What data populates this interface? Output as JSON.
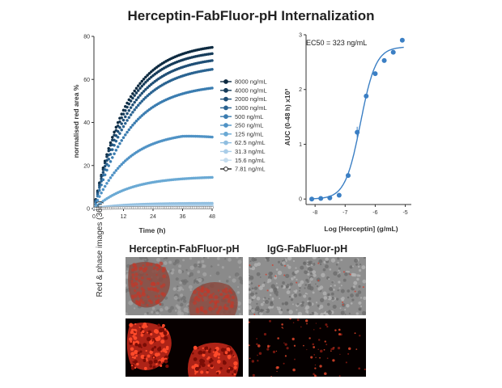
{
  "title": "Herceptin-FabFluor-pH Internalization",
  "chart_data": [
    {
      "type": "line",
      "xlabel": "Time (h)",
      "ylabel": "normalised red area %",
      "xlim": [
        0,
        48
      ],
      "ylim": [
        0,
        80
      ],
      "xticks": [
        "0",
        "12",
        "24",
        "36",
        "48"
      ],
      "yticks": [
        "0",
        "20",
        "40",
        "60",
        "80"
      ],
      "legend_position": "right",
      "series": [
        {
          "name": "8000 ng/mL",
          "color": "#0d2a40",
          "plateau": 77,
          "rate": 0.075,
          "x": [
            0,
            6,
            12,
            18,
            24,
            30,
            36,
            42,
            48
          ],
          "y": [
            0,
            28,
            47,
            59,
            67,
            72,
            75,
            76,
            77
          ]
        },
        {
          "name": "4000 ng/mL",
          "color": "#173c5a",
          "plateau": 74,
          "rate": 0.075,
          "x": [
            0,
            6,
            12,
            18,
            24,
            30,
            36,
            42,
            48
          ],
          "y": [
            0,
            27,
            45,
            57,
            64,
            69,
            72,
            73,
            74
          ]
        },
        {
          "name": "2000 ng/mL",
          "color": "#1f4e75",
          "plateau": 71,
          "rate": 0.072,
          "x": [
            0,
            6,
            12,
            18,
            24,
            30,
            36,
            42,
            48
          ],
          "y": [
            0,
            25,
            42,
            53,
            61,
            66,
            68,
            70,
            71
          ]
        },
        {
          "name": "1000 ng/mL",
          "color": "#2a6391",
          "plateau": 67,
          "rate": 0.07,
          "x": [
            0,
            6,
            12,
            18,
            24,
            30,
            36,
            42,
            48
          ],
          "y": [
            0,
            23,
            39,
            50,
            57,
            61,
            64,
            66,
            67
          ]
        },
        {
          "name": "500 ng/mL",
          "color": "#3a7cb0",
          "plateau": 58,
          "rate": 0.07,
          "x": [
            0,
            6,
            12,
            18,
            24,
            30,
            36,
            42,
            48
          ],
          "y": [
            0,
            20,
            33,
            43,
            49,
            53,
            56,
            57,
            58
          ]
        },
        {
          "name": "250 ng/mL",
          "color": "#4f92c5",
          "plateau": 36,
          "rate": 0.075,
          "x": [
            0,
            6,
            12,
            18,
            24,
            30,
            36,
            42,
            48
          ],
          "y": [
            0,
            13,
            22,
            27,
            31,
            34,
            36,
            35,
            34
          ]
        },
        {
          "name": "125 ng/mL",
          "color": "#6aa9d4",
          "plateau": 15,
          "rate": 0.07,
          "x": [
            0,
            6,
            12,
            18,
            24,
            30,
            36,
            42,
            48
          ],
          "y": [
            0,
            5,
            9,
            11,
            13,
            14,
            15,
            14,
            14
          ]
        },
        {
          "name": "62.5 ng/mL",
          "color": "#8fbee0",
          "plateau": 2.5,
          "rate": 0.08,
          "x": [
            0,
            6,
            12,
            18,
            24,
            30,
            36,
            42,
            48
          ],
          "y": [
            0,
            1,
            1.5,
            2,
            2.3,
            2.5,
            2.5,
            2.5,
            2.5
          ]
        },
        {
          "name": "31.3 ng/mL",
          "color": "#a9cde8",
          "plateau": 1.5,
          "rate": 0.08,
          "x": [
            0,
            6,
            12,
            18,
            24,
            30,
            36,
            42,
            48
          ],
          "y": [
            0,
            0.6,
            1,
            1.2,
            1.4,
            1.5,
            1.5,
            1.5,
            1.5
          ]
        },
        {
          "name": "15.6 ng/mL",
          "color": "#c4dcee",
          "plateau": 0.8,
          "rate": 0.08,
          "x": [
            0,
            6,
            12,
            18,
            24,
            30,
            36,
            42,
            48
          ],
          "y": [
            0,
            0.3,
            0.5,
            0.6,
            0.7,
            0.8,
            0.8,
            0.8,
            0.8
          ]
        },
        {
          "name": "7.81 ng/mL",
          "color": "#ffffff",
          "plateau": 0.5,
          "rate": 0.08,
          "x": [
            0,
            6,
            12,
            18,
            24,
            30,
            36,
            42,
            48
          ],
          "y": [
            0,
            0.2,
            0.3,
            0.4,
            0.45,
            0.5,
            0.5,
            0.5,
            0.5
          ]
        }
      ]
    },
    {
      "type": "scatter",
      "xlabel": "Log [Herceptin] (g/mL)",
      "ylabel": "AUC (0-48 h) x10³",
      "annotation": "EC50 = 323 ng/mL",
      "xlim": [
        -8.3,
        -4.8
      ],
      "ylim": [
        -0.1,
        3.0
      ],
      "xticks": [
        "-8",
        "-7",
        "-6",
        "-5"
      ],
      "yticks": [
        "0",
        "1",
        "2",
        "3"
      ],
      "fit": "sigmoidal dose-response",
      "fit_params": {
        "bottom": 0.0,
        "top": 2.78,
        "logEC50": -6.49,
        "hill": 1.7
      },
      "points": [
        {
          "x": -8.11,
          "y": 0.0
        },
        {
          "x": -7.81,
          "y": 0.01
        },
        {
          "x": -7.51,
          "y": 0.02
        },
        {
          "x": -7.2,
          "y": 0.07
        },
        {
          "x": -6.9,
          "y": 0.43
        },
        {
          "x": -6.6,
          "y": 1.22
        },
        {
          "x": -6.3,
          "y": 1.88
        },
        {
          "x": -6.0,
          "y": 2.29
        },
        {
          "x": -5.7,
          "y": 2.53
        },
        {
          "x": -5.4,
          "y": 2.68
        },
        {
          "x": -5.1,
          "y": 2.9
        }
      ]
    }
  ],
  "images": {
    "col1_title": "Herceptin-FabFluor-pH",
    "col2_title": "IgG-FabFluor-pH",
    "row_label": "Red & phase images (36h)"
  }
}
